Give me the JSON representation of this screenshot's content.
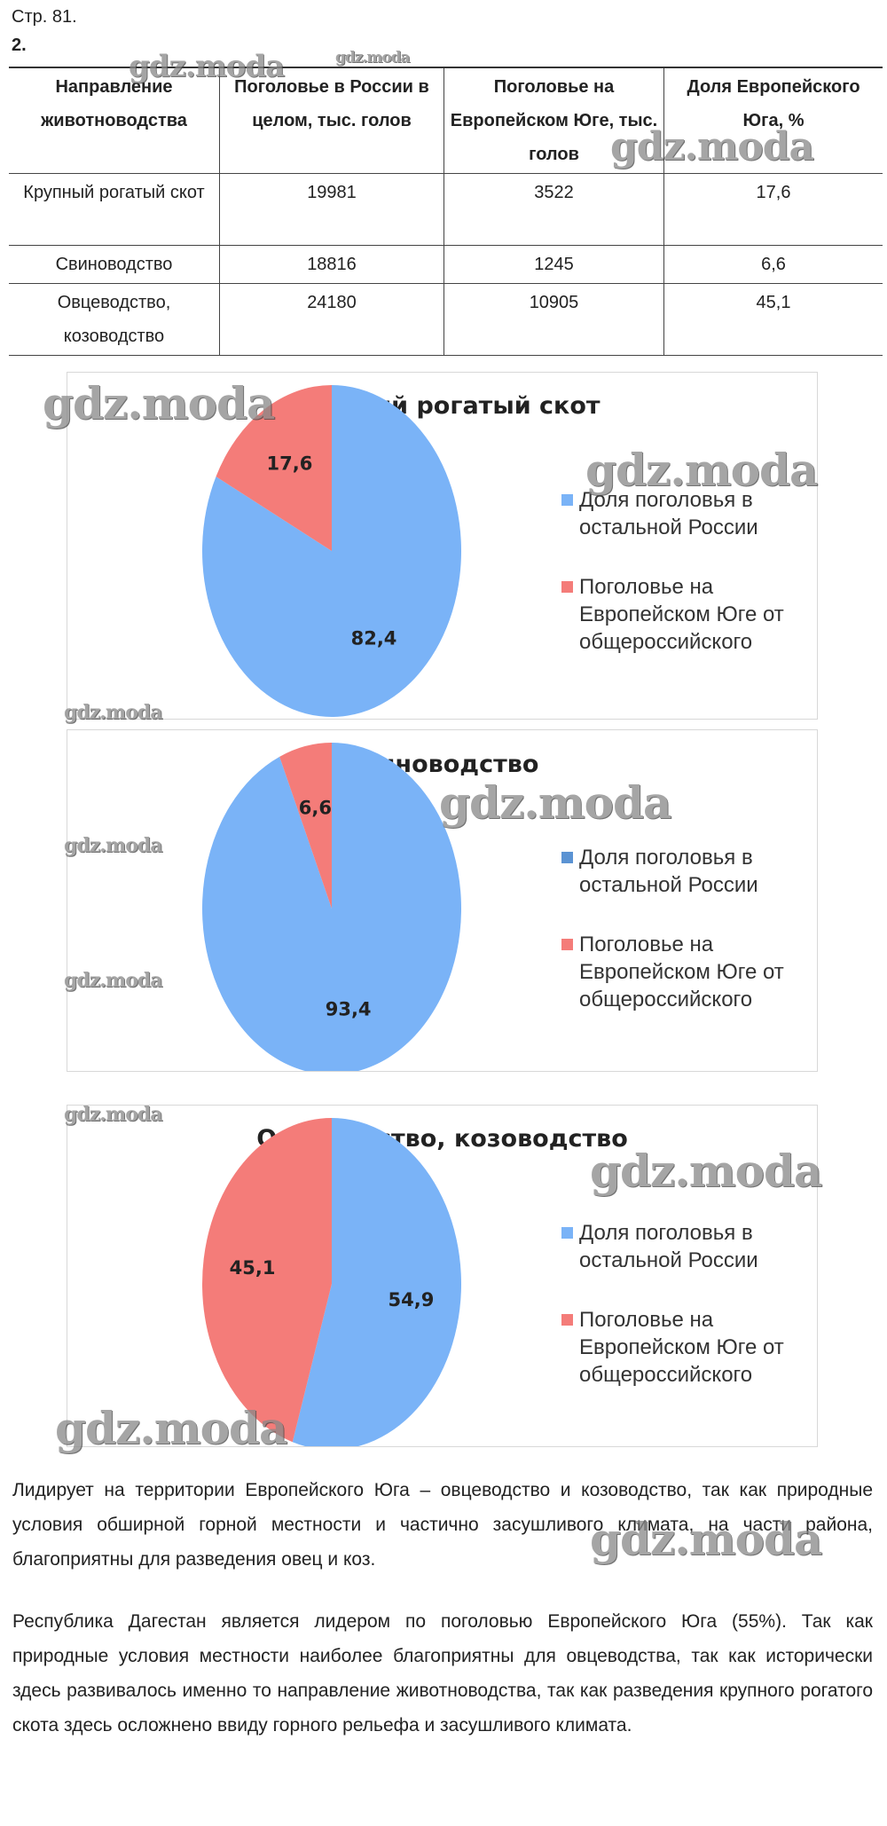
{
  "page_ref": "Стр. 81.",
  "task_number": "2.",
  "table": {
    "headers": [
      "Направление животноводства",
      "Поголовье в России в целом, тыс. голов",
      "Поголовье на Европейском Юге, тыс. голов",
      "Доля Европейского Юга, %"
    ],
    "rows": [
      [
        "Крупный рогатый скот",
        "19981",
        "3522",
        "17,6"
      ],
      [
        "Свиноводство",
        "18816",
        "1245",
        "6,6"
      ],
      [
        "Овцеводство, козоводство",
        "24180",
        "10905",
        "45,1"
      ]
    ]
  },
  "chart_data": [
    {
      "type": "pie",
      "title": "Крупный рогатый скот",
      "labels": [
        "Доля поголовья в остальной России",
        "Поголовье на Европейском Юге от общероссийского"
      ],
      "values": [
        82.4,
        17.6
      ],
      "value_labels": [
        "82,4",
        "17,6"
      ],
      "colors": [
        "#7ab3f7",
        "#f47c79"
      ],
      "legend": "right"
    },
    {
      "type": "pie",
      "title": "Свиноводство",
      "labels": [
        "Доля поголовья в остальной России",
        "Поголовье на Европейском Юге от общероссийского"
      ],
      "values": [
        93.4,
        6.6
      ],
      "value_labels": [
        "93,4",
        "6,6"
      ],
      "colors": [
        "#7ab3f7",
        "#f47c79"
      ],
      "legend": "right"
    },
    {
      "type": "pie",
      "title": "Овцеводство, козоводство",
      "labels": [
        "Доля поголовья в остальной России",
        "Поголовье на Европейском Юге от общероссийского"
      ],
      "values": [
        54.9,
        45.1
      ],
      "value_labels": [
        "54,9",
        "45,1"
      ],
      "colors": [
        "#7ab3f7",
        "#f47c79"
      ],
      "legend": "right"
    }
  ],
  "paragraphs": [
    "Лидирует на территории Европейского Юга – овцеводство и козоводство, так как природные условия обширной горной местности и частично засушливого климата, на части района, благоприятны для разведения овец и коз.",
    "Республика Дагестан является лидером по поголовью Европейского Юга (55%). Так как природные условия местности наиболее благоприятны для овцеводства, так как исторически здесь развивалось именно то направление животноводства, так как разведения крупного рогатого скота здесь осложнено ввиду горного рельефа и засушливого климата."
  ],
  "watermark": "gdz.moda"
}
